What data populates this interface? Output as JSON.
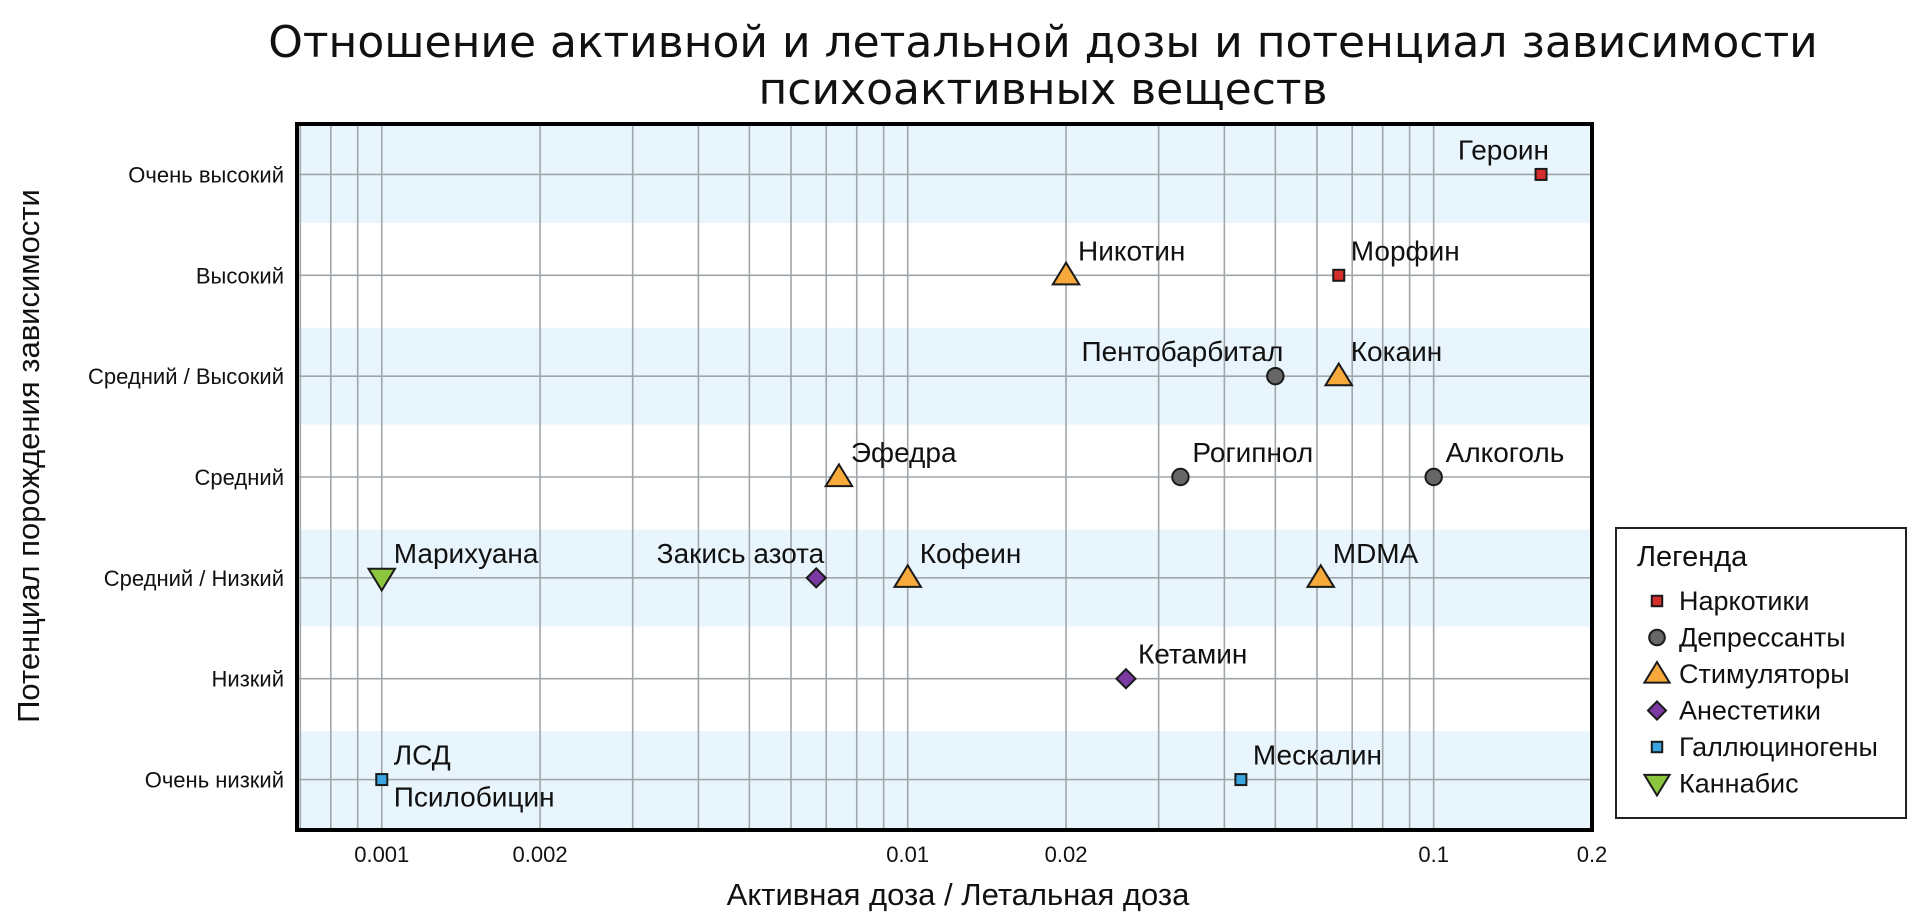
{
  "chart_data": {
    "type": "scatter",
    "title_lines": [
      "Отношение активной и летальной дозы и потенциал зависимости",
      "психоактивных веществ"
    ],
    "xlabel": "Активная доза / Летальная доза",
    "ylabel": "Потенциал порождения зависимости",
    "x_scale": "log",
    "xlim": [
      0.00069,
      0.2
    ],
    "x_ticks": [
      {
        "value": 0.001,
        "label": "0.001"
      },
      {
        "value": 0.002,
        "label": "0.002"
      },
      {
        "value": 0.01,
        "label": "0.01"
      },
      {
        "value": 0.02,
        "label": "0.02"
      },
      {
        "value": 0.1,
        "label": "0.1"
      },
      {
        "value": 0.2,
        "label": "0.2"
      }
    ],
    "y_categories": [
      "Очень низкий",
      "Низкий",
      "Средний / Низкий",
      "Средний",
      "Средний / Высокий",
      "Высокий",
      "Очень высокий"
    ],
    "grid": true,
    "band_colors": [
      "#e8f5fc",
      "#ffffff"
    ],
    "legend_position": "right",
    "legend_title": "Легенда",
    "series": [
      {
        "name": "Наркотики",
        "marker": "square",
        "color": "#d62d2d"
      },
      {
        "name": "Депрессанты",
        "marker": "circle",
        "color": "#666666"
      },
      {
        "name": "Стимуляторы",
        "marker": "triangle-up",
        "color": "#f7a93b"
      },
      {
        "name": "Анестетики",
        "marker": "diamond",
        "color": "#7a3aa1"
      },
      {
        "name": "Галлюциногены",
        "marker": "square",
        "color": "#3aa5de"
      },
      {
        "name": "Каннабис",
        "marker": "triangle-down",
        "color": "#8cc63e"
      }
    ],
    "points": [
      {
        "label": "Героин",
        "series": 0,
        "x": 0.16,
        "y": 6,
        "label_pos": "above-left"
      },
      {
        "label": "Морфин",
        "series": 0,
        "x": 0.066,
        "y": 5,
        "label_pos": "above-right"
      },
      {
        "label": "Никотин",
        "series": 2,
        "x": 0.02,
        "y": 5,
        "label_pos": "above-right"
      },
      {
        "label": "Пентобарбитал",
        "series": 1,
        "x": 0.05,
        "y": 4,
        "label_pos": "above-left"
      },
      {
        "label": "Кокаин",
        "series": 2,
        "x": 0.066,
        "y": 4,
        "label_pos": "above-right"
      },
      {
        "label": "Эфедра",
        "series": 2,
        "x": 0.0074,
        "y": 3,
        "label_pos": "above-right"
      },
      {
        "label": "Рогипнол",
        "series": 1,
        "x": 0.033,
        "y": 3,
        "label_pos": "above-right"
      },
      {
        "label": "Алкоголь",
        "series": 1,
        "x": 0.1,
        "y": 3,
        "label_pos": "above-right"
      },
      {
        "label": "Марихуана",
        "series": 5,
        "x": 0.001,
        "y": 2,
        "label_pos": "above-right"
      },
      {
        "label": "Закись азота",
        "series": 3,
        "x": 0.0067,
        "y": 2,
        "label_pos": "above-left"
      },
      {
        "label": "Кофеин",
        "series": 2,
        "x": 0.01,
        "y": 2,
        "label_pos": "above-right"
      },
      {
        "label": "MDMA",
        "series": 2,
        "x": 0.061,
        "y": 2,
        "label_pos": "above-right"
      },
      {
        "label": "Кетамин",
        "series": 3,
        "x": 0.026,
        "y": 1,
        "label_pos": "above-right"
      },
      {
        "label": "ЛСД",
        "series": 4,
        "x": 0.001,
        "y": 0,
        "label_pos": "above-right"
      },
      {
        "label": "Псилобицин",
        "series": 4,
        "x": 0.001,
        "y": 0,
        "label_pos": "below-right"
      },
      {
        "label": "Мескалин",
        "series": 4,
        "x": 0.043,
        "y": 0,
        "label_pos": "above-right"
      }
    ]
  }
}
